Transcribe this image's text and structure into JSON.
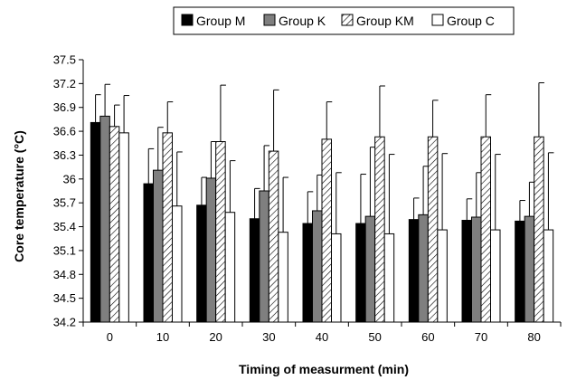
{
  "chart_data": {
    "type": "bar",
    "xlabel": "Timing of measurment (min)",
    "ylabel": "Core temperature (°C)",
    "categories": [
      "0",
      "10",
      "20",
      "30",
      "40",
      "50",
      "60",
      "70",
      "80"
    ],
    "ylim": [
      34.2,
      37.5
    ],
    "yticks": [
      "34.2",
      "34.5",
      "34.8",
      "35.1",
      "35.4",
      "35.7",
      "36",
      "36.3",
      "36.6",
      "36.9",
      "37.2",
      "37.5"
    ],
    "error_bars": "one-sided upward",
    "grid": false,
    "legend_position": "top",
    "series": [
      {
        "name": "Group M",
        "fill": "#000000",
        "values": [
          36.71,
          35.94,
          35.67,
          35.5,
          35.44,
          35.44,
          35.49,
          35.48,
          35.47
        ],
        "errors": [
          0.35,
          0.44,
          0.35,
          0.38,
          0.4,
          0.62,
          0.27,
          0.27,
          0.26
        ]
      },
      {
        "name": "Group K",
        "fill": "#7f7f7f",
        "values": [
          36.79,
          36.11,
          36.01,
          35.85,
          35.6,
          35.53,
          35.55,
          35.52,
          35.53
        ],
        "errors": [
          0.4,
          0.54,
          0.46,
          0.57,
          0.45,
          0.87,
          0.61,
          0.56,
          0.43
        ]
      },
      {
        "name": "Group KM",
        "fill": "hatch",
        "values": [
          36.66,
          36.58,
          36.47,
          36.35,
          36.5,
          36.53,
          36.53,
          36.53,
          36.53
        ],
        "errors": [
          0.27,
          0.39,
          0.71,
          0.77,
          0.47,
          0.64,
          0.46,
          0.53,
          0.68
        ]
      },
      {
        "name": "Group C",
        "fill": "#ffffff",
        "values": [
          36.58,
          35.66,
          35.58,
          35.33,
          35.31,
          35.31,
          35.36,
          35.36,
          35.36
        ],
        "errors": [
          0.47,
          0.68,
          0.65,
          0.69,
          0.77,
          1.0,
          0.96,
          0.95,
          0.97
        ]
      }
    ]
  }
}
